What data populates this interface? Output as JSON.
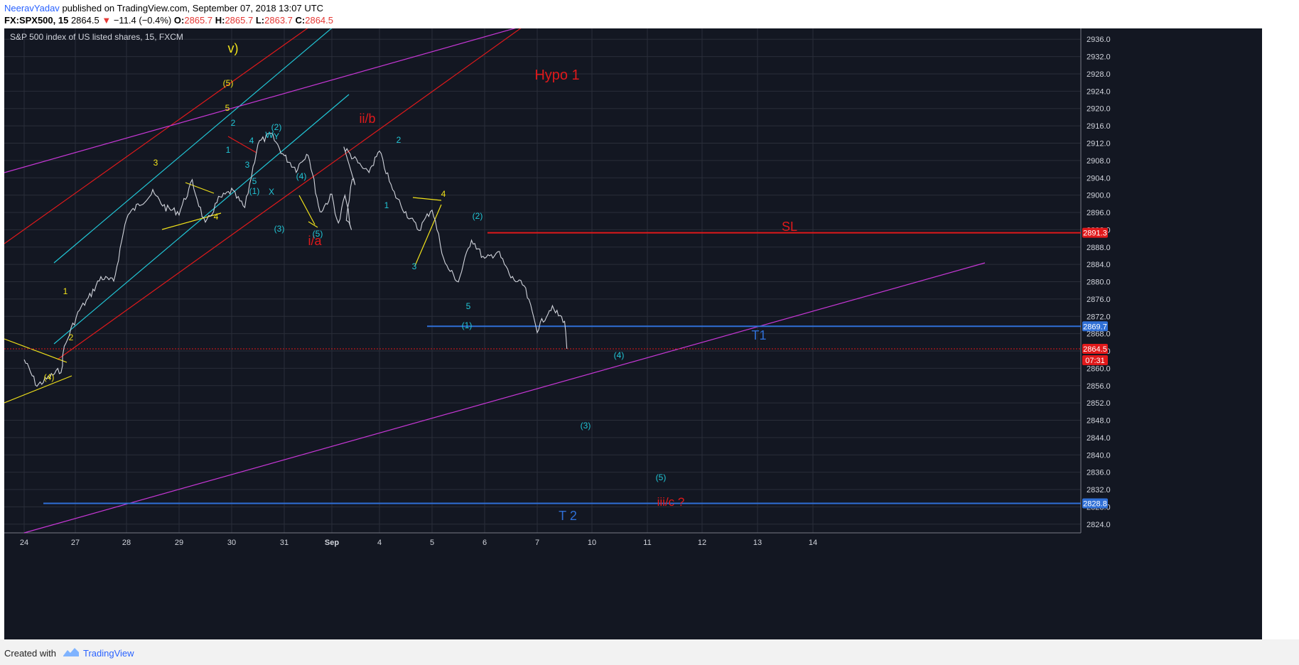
{
  "header": {
    "author": "NeeravYadav",
    "published": "published on TradingView.com, September 07, 2018 13:07 UTC",
    "symbol": "FX:SPX500, 15",
    "last": "2864.5",
    "arrow": "▼",
    "change": "−11.4 (−0.4%)",
    "o_label": "O:",
    "o": "2865.7",
    "h_label": "H:",
    "h": "2865.7",
    "l_label": "L:",
    "l": "2863.7",
    "c_label": "C:",
    "c": "2864.5"
  },
  "footer": {
    "created": "Created with",
    "brand": "TradingView"
  },
  "colors": {
    "background": "#131722",
    "grid": "#2a2e39",
    "candle": "#d1d4dc",
    "red": "#e0191b",
    "cyan": "#21c6d6",
    "magenta": "#c737d6",
    "yellow": "#f1e21a",
    "blue": "#2f6fd6",
    "axis_text": "#d1d4dc"
  },
  "chart_data": {
    "type": "line",
    "title": "S&P 500 index of US listed shares, 15, FXCM",
    "x_ticks": [
      "24",
      "27",
      "28",
      "29",
      "30",
      "31",
      "Sep",
      "4",
      "5",
      "6",
      "7",
      "10",
      "11",
      "12",
      "13",
      "14"
    ],
    "y_ticks": [
      2824.0,
      2828.0,
      2832.0,
      2836.0,
      2840.0,
      2844.0,
      2848.0,
      2852.0,
      2856.0,
      2860.0,
      2864.0,
      2868.0,
      2872.0,
      2876.0,
      2880.0,
      2884.0,
      2888.0,
      2892.0,
      2896.0,
      2900.0,
      2904.0,
      2908.0,
      2912.0,
      2916.0,
      2920.0,
      2924.0,
      2928.0,
      2932.0,
      2936.0
    ],
    "ylim": [
      2822.0,
      2938.5
    ],
    "price_path": [
      [
        "Aug 24 00:00",
        2862.0
      ],
      [
        "Aug 24 06:00",
        2856.0
      ],
      [
        "Aug 24 12:00",
        2858.0
      ],
      [
        "Aug 24 18:00",
        2860.0
      ],
      [
        "Aug 26 18:00",
        2863.5
      ],
      [
        "Aug 26 22:00",
        2869.0
      ],
      [
        "Aug 27 02:00",
        2873.5
      ],
      [
        "Aug 27 06:00",
        2876.0
      ],
      [
        "Aug 27 12:00",
        2881.0
      ],
      [
        "Aug 27 18:00",
        2880.0
      ],
      [
        "Aug 28 00:00",
        2895.0
      ],
      [
        "Aug 28 06:00",
        2898.0
      ],
      [
        "Aug 28 12:00",
        2900.5
      ],
      [
        "Aug 28 18:00",
        2897.0
      ],
      [
        "Aug 29 00:00",
        2896.0
      ],
      [
        "Aug 29 06:00",
        2903.0
      ],
      [
        "Aug 29 12:00",
        2893.0
      ],
      [
        "Aug 29 18:00",
        2899.0
      ],
      [
        "Aug 30 00:00",
        2901.0
      ],
      [
        "Aug 30 06:00",
        2897.0
      ],
      [
        "Aug 30 12:00",
        2912.0
      ],
      [
        "Aug 30 18:00",
        2914.0
      ],
      [
        "Aug 31 00:00",
        2909.0
      ],
      [
        "Aug 31 06:00",
        2906.0
      ],
      [
        "Aug 31 12:00",
        2910.0
      ],
      [
        "Aug 31 18:00",
        2896.0
      ],
      [
        "Sep 01 00:00",
        2900.0
      ],
      [
        "Sep 01 06:00",
        2893.0
      ],
      [
        "Sep 01 12:00",
        2900.0
      ],
      [
        "Sep 01 18:00",
        2892.0
      ],
      [
        "Sep 02 00:00",
        2894.0
      ],
      [
        "Sep 02 12:00",
        2904.0
      ],
      [
        "Sep 02 18:00",
        2903.0
      ],
      [
        "Sep 03 06:00",
        2911.0
      ],
      [
        "Sep 03 18:00",
        2905.0
      ],
      [
        "Sep 04 00:00",
        2910.0
      ],
      [
        "Sep 04 06:00",
        2901.0
      ],
      [
        "Sep 04 12:00",
        2896.0
      ],
      [
        "Sep 04 18:00",
        2892.0
      ],
      [
        "Sep 05 00:00",
        2897.0
      ],
      [
        "Sep 05 06:00",
        2884.0
      ],
      [
        "Sep 05 12:00",
        2880.0
      ],
      [
        "Sep 05 18:00",
        2890.0
      ],
      [
        "Sep 06 00:00",
        2885.0
      ],
      [
        "Sep 06 06:00",
        2887.0
      ],
      [
        "Sep 06 12:00",
        2881.0
      ],
      [
        "Sep 06 18:00",
        2879.0
      ],
      [
        "Sep 07 00:00",
        2869.0
      ],
      [
        "Sep 07 06:00",
        2874.0
      ],
      [
        "Sep 07 12:00",
        2871.0
      ],
      [
        "Sep 07 13:00",
        2864.5
      ]
    ],
    "price_labels": [
      {
        "text": "2891.3",
        "value": 2891.3,
        "color": "#e0191b"
      },
      {
        "text": "2869.7",
        "value": 2869.7,
        "color": "#2f6fd6"
      },
      {
        "text": "2864.5",
        "value": 2864.5,
        "color": "#e0191b"
      },
      {
        "text": "07:31",
        "color": "#e0191b"
      },
      {
        "text": "2828.8",
        "value": 2828.8,
        "color": "#2f6fd6"
      }
    ],
    "levels": [
      {
        "name": "SL",
        "value": 2891.3,
        "color": "#e0191b"
      },
      {
        "name": "T1",
        "value": 2869.7,
        "color": "#2f6fd6"
      },
      {
        "name": "T 2",
        "value": 2828.8,
        "color": "#2f6fd6"
      }
    ],
    "annotations": [
      {
        "text": "Hypo 1",
        "color": "#e0191b"
      },
      {
        "text": "ii/b",
        "color": "#e0191b"
      },
      {
        "text": "i/a",
        "color": "#e0191b"
      },
      {
        "text": "iii/c ?",
        "color": "#e0191b"
      },
      {
        "text": "v)",
        "color": "#f1e21a"
      },
      {
        "text": "(5)",
        "color": "#f1e21a"
      },
      {
        "text": "5",
        "color": "#f1e21a"
      },
      {
        "text": "3",
        "color": "#f1e21a"
      },
      {
        "text": "4",
        "color": "#f1e21a"
      },
      {
        "text": "1",
        "color": "#f1e21a"
      },
      {
        "text": "2",
        "color": "#f1e21a"
      },
      {
        "text": "(4)",
        "color": "#f1e21a"
      },
      {
        "text": "2",
        "color": "#21c6d6"
      },
      {
        "text": "1",
        "color": "#21c6d6"
      },
      {
        "text": "4",
        "color": "#21c6d6"
      },
      {
        "text": "3",
        "color": "#21c6d6"
      },
      {
        "text": "5",
        "color": "#21c6d6"
      },
      {
        "text": "(1)",
        "color": "#21c6d6"
      },
      {
        "text": "(2)",
        "color": "#21c6d6"
      },
      {
        "text": "W",
        "color": "#21c6d6"
      },
      {
        "text": "Y",
        "color": "#21c6d6"
      },
      {
        "text": "X",
        "color": "#21c6d6"
      },
      {
        "text": "(3)",
        "color": "#21c6d6"
      },
      {
        "text": "(4)",
        "color": "#21c6d6"
      },
      {
        "text": "(5)",
        "color": "#21c6d6"
      },
      {
        "text": "1",
        "color": "#21c6d6"
      },
      {
        "text": "2",
        "color": "#21c6d6"
      },
      {
        "text": "3",
        "color": "#21c6d6"
      },
      {
        "text": "4",
        "color": "#f1e21a"
      },
      {
        "text": "5",
        "color": "#21c6d6"
      },
      {
        "text": "(2)",
        "color": "#21c6d6"
      },
      {
        "text": "(1)",
        "color": "#21c6d6"
      },
      {
        "text": "(4)",
        "color": "#21c6d6"
      },
      {
        "text": "(3)",
        "color": "#21c6d6"
      },
      {
        "text": "(5)",
        "color": "#21c6d6"
      }
    ]
  }
}
